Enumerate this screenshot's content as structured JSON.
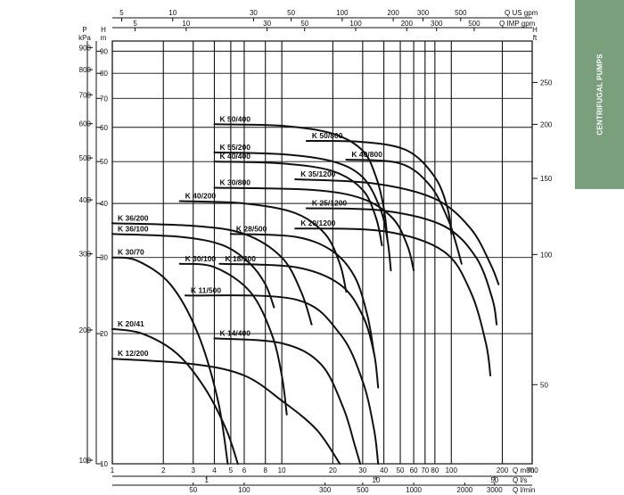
{
  "side_tab": {
    "label": "CENTRIFUGAL PUMPS",
    "color": "#7a9f7c"
  },
  "chart_data": {
    "type": "line",
    "title": "",
    "xscale": "log",
    "yscale": "log",
    "xlim": [
      1,
      300
    ],
    "ylim": [
      10,
      95
    ],
    "grid": true,
    "axes": {
      "left_kpa": {
        "label": [
          "P",
          "kPa"
        ],
        "ticks": [
          100,
          200,
          300,
          400,
          500,
          600,
          700,
          800,
          900
        ]
      },
      "left_m": {
        "label": [
          "H",
          "m"
        ],
        "ticks": [
          10,
          20,
          30,
          40,
          50,
          60,
          70,
          80,
          90
        ]
      },
      "right_ft": {
        "label": [
          "H",
          "ft"
        ],
        "ticks": [
          50,
          100,
          150,
          200,
          250
        ]
      },
      "bottom_m3h": {
        "label": "Q m³/h",
        "ticks": [
          1,
          2,
          3,
          4,
          5,
          6,
          8,
          10,
          20,
          30,
          40,
          50,
          60,
          70,
          80,
          100,
          200,
          300
        ]
      },
      "bottom_ls": {
        "label": "Q l/s",
        "ticks": [
          1,
          10,
          50
        ]
      },
      "bottom_lmin": {
        "label": "Q l/min",
        "ticks": [
          50,
          100,
          300,
          500,
          1000,
          2000,
          3000
        ]
      },
      "top_usgpm": {
        "label": "Q US gpm",
        "ticks": [
          5,
          10,
          30,
          50,
          100,
          200,
          300,
          500
        ]
      },
      "top_impgpm": {
        "label": "Q IMP gpm",
        "ticks": [
          5,
          10,
          30,
          50,
          100,
          200,
          300,
          500
        ]
      }
    },
    "series": [
      {
        "name": "K 50/400",
        "points": [
          [
            4.0,
            61
          ],
          [
            10,
            60.5
          ],
          [
            20,
            58
          ],
          [
            30,
            53
          ],
          [
            36,
            46
          ],
          [
            40,
            39
          ],
          [
            42,
            33
          ]
        ]
      },
      {
        "name": "K 50/800",
        "points": [
          [
            14,
            55.8
          ],
          [
            30,
            55.5
          ],
          [
            55,
            53
          ],
          [
            80,
            46
          ],
          [
            95,
            39
          ],
          [
            100,
            34
          ]
        ]
      },
      {
        "name": "K 55/200",
        "points": [
          [
            4.0,
            52.5
          ],
          [
            10,
            52
          ],
          [
            20,
            50
          ],
          [
            30,
            46
          ],
          [
            38,
            39
          ],
          [
            42,
            33
          ],
          [
            44,
            28
          ]
        ]
      },
      {
        "name": "K 40/400",
        "points": [
          [
            4.0,
            50
          ],
          [
            10,
            49.5
          ],
          [
            20,
            47.5
          ],
          [
            30,
            43
          ],
          [
            36,
            37
          ],
          [
            39,
            32
          ]
        ]
      },
      {
        "name": "K 40/800",
        "points": [
          [
            24,
            50.5
          ],
          [
            50,
            49.5
          ],
          [
            75,
            44
          ],
          [
            95,
            37
          ],
          [
            105,
            33
          ],
          [
            115,
            29
          ]
        ]
      },
      {
        "name": "K 35/1200",
        "points": [
          [
            12,
            45.5
          ],
          [
            35,
            44.5
          ],
          [
            80,
            41
          ],
          [
            130,
            35
          ],
          [
            170,
            29
          ],
          [
            190,
            26
          ]
        ]
      },
      {
        "name": "K 30/800",
        "points": [
          [
            4.0,
            43.5
          ],
          [
            15,
            43
          ],
          [
            30,
            41
          ],
          [
            45,
            37
          ],
          [
            55,
            32
          ],
          [
            60,
            28
          ]
        ]
      },
      {
        "name": "K 40/200",
        "points": [
          [
            2.5,
            40.5
          ],
          [
            6,
            40
          ],
          [
            12,
            38
          ],
          [
            18,
            34
          ],
          [
            22,
            29
          ],
          [
            24,
            25
          ]
        ]
      },
      {
        "name": "K 25/1200",
        "points": [
          [
            14,
            39
          ],
          [
            40,
            38.5
          ],
          [
            90,
            35.5
          ],
          [
            140,
            30
          ],
          [
            175,
            24
          ],
          [
            185,
            21
          ]
        ]
      },
      {
        "name": "K 20/1200",
        "points": [
          [
            12,
            35
          ],
          [
            40,
            34.5
          ],
          [
            90,
            31
          ],
          [
            130,
            25
          ],
          [
            160,
            19
          ],
          [
            170,
            16
          ]
        ]
      },
      {
        "name": "K 36/200",
        "points": [
          [
            1,
            36
          ],
          [
            3,
            35.5
          ],
          [
            6,
            34
          ],
          [
            10,
            30
          ],
          [
            13,
            25
          ],
          [
            15,
            21
          ]
        ]
      },
      {
        "name": "K 28/500",
        "points": [
          [
            5,
            34
          ],
          [
            12,
            33.5
          ],
          [
            20,
            31
          ],
          [
            27,
            27
          ],
          [
            32,
            22
          ],
          [
            35,
            18
          ]
        ]
      },
      {
        "name": "K 36/100",
        "points": [
          [
            1,
            34
          ],
          [
            2.5,
            33.5
          ],
          [
            4.5,
            32
          ],
          [
            6.5,
            29
          ],
          [
            8,
            26
          ],
          [
            9,
            23
          ]
        ]
      },
      {
        "name": "K 18/500",
        "points": [
          [
            4.3,
            29
          ],
          [
            12,
            28.5
          ],
          [
            22,
            26
          ],
          [
            30,
            22
          ],
          [
            35,
            18
          ],
          [
            37,
            15
          ]
        ]
      },
      {
        "name": "K 30/70",
        "points": [
          [
            1,
            30
          ],
          [
            1.4,
            29.5
          ],
          [
            2.2,
            26
          ],
          [
            3.2,
            20
          ],
          [
            4.2,
            14
          ],
          [
            4.8,
            10
          ]
        ]
      },
      {
        "name": "K 30/100",
        "points": [
          [
            2.5,
            29
          ],
          [
            4,
            28.5
          ],
          [
            6.5,
            25
          ],
          [
            8.7,
            20
          ],
          [
            10,
            16
          ],
          [
            10.7,
            13
          ]
        ]
      },
      {
        "name": "K 11/500",
        "points": [
          [
            2.7,
            24.5
          ],
          [
            12,
            24
          ],
          [
            22,
            20
          ],
          [
            30,
            15.5
          ],
          [
            35,
            12
          ],
          [
            37,
            10
          ]
        ]
      },
      {
        "name": "K 14/400",
        "points": [
          [
            4,
            19.5
          ],
          [
            10,
            19
          ],
          [
            17,
            17
          ],
          [
            23,
            13.5
          ],
          [
            27,
            11
          ],
          [
            29,
            10
          ]
        ]
      },
      {
        "name": "K 20/41",
        "points": [
          [
            1,
            20.5
          ],
          [
            1.5,
            20
          ],
          [
            2.4,
            18
          ],
          [
            3.5,
            15
          ],
          [
            4.7,
            12
          ],
          [
            5.5,
            10
          ]
        ]
      },
      {
        "name": "K 12/200",
        "points": [
          [
            1,
            17.5
          ],
          [
            3,
            17
          ],
          [
            6,
            16
          ],
          [
            10,
            14
          ],
          [
            16,
            12
          ],
          [
            22,
            10
          ]
        ]
      }
    ]
  }
}
